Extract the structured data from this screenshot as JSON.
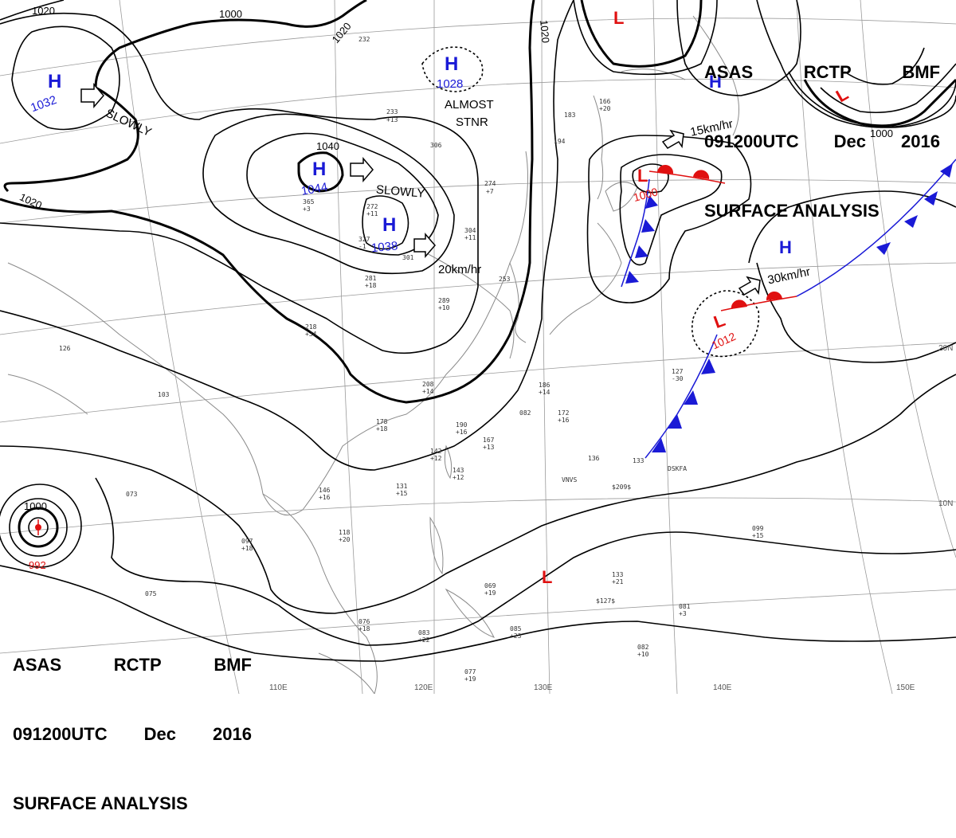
{
  "header": {
    "line1": [
      "ASAS",
      "RCTP",
      "BMF"
    ],
    "line2": [
      "091200UTC",
      "Dec",
      "2016"
    ],
    "line3": "SURFACE ANALYSIS"
  },
  "colors": {
    "high": "#1a1ad6",
    "low": "#e01010",
    "isobar": "#000000",
    "coast": "#8a8a8a",
    "grid": "#9a9a9a",
    "cold_front": "#1a1ad6",
    "warm_front": "#e01010"
  },
  "pressure_centers": [
    {
      "type": "H",
      "value": "1032"
    },
    {
      "type": "H",
      "value": "1044"
    },
    {
      "type": "H",
      "value": "1038"
    },
    {
      "type": "H",
      "value": "1028"
    },
    {
      "type": "H",
      "value": ""
    },
    {
      "type": "H",
      "value": ""
    },
    {
      "type": "L",
      "value": "1000"
    },
    {
      "type": "L",
      "value": "1012"
    },
    {
      "type": "L",
      "value": "992"
    },
    {
      "type": "L",
      "value": ""
    },
    {
      "type": "L",
      "value": ""
    },
    {
      "type": "L",
      "value": ""
    }
  ],
  "isobar_labels": [
    "1020",
    "1020",
    "1020",
    "1000",
    "1000",
    "1000",
    "1040",
    "1020"
  ],
  "movement_labels": [
    "SLOWLY",
    "SLOWLY",
    "20km/hr",
    "15km/hr",
    "30km/hr",
    "ALMOST",
    "STNR"
  ],
  "latitude_labels": [
    "20N",
    "10N"
  ],
  "longitude_labels": [
    "110E",
    "120E",
    "130E",
    "140E",
    "150E"
  ],
  "station_obs": [
    "232",
    "233",
    "+13",
    "306",
    "274",
    "+7",
    "365",
    "+3",
    "272",
    "+11",
    "327",
    "-1",
    "301",
    "281",
    "+18",
    "304",
    "+11",
    "289",
    "+10",
    "253",
    "218",
    "+34",
    "186",
    "+14",
    "208",
    "+14",
    "178",
    "+18",
    "190",
    "+16",
    "082",
    "172",
    "+16",
    "167",
    "+13",
    "142",
    "+12",
    "143",
    "+12",
    "131",
    "+15",
    "146",
    "+16",
    "118",
    "+20",
    "097",
    "+18",
    "136",
    "133",
    "127",
    "-30",
    "099",
    "+15",
    "133",
    "+21",
    "081",
    "+3",
    "082",
    "+10",
    "085",
    "+23",
    "083",
    "+22",
    "076",
    "+18",
    "075",
    "069",
    "+19",
    "077",
    "+19",
    "073",
    "103",
    "126",
    "183",
    "166",
    "+20",
    "194",
    "VNVS",
    "$209$",
    "$127$",
    "DSKFA"
  ]
}
